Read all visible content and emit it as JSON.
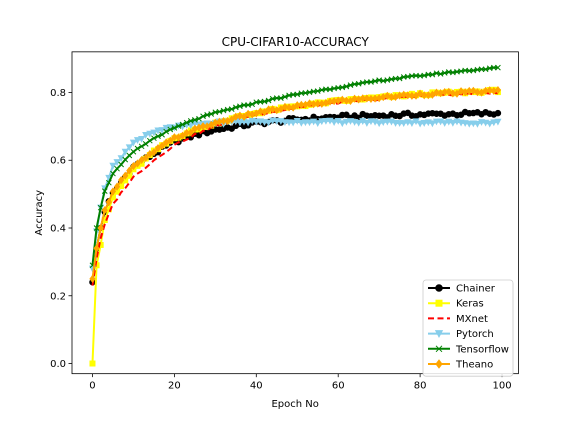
{
  "chart_data": {
    "type": "line",
    "title": "CPU-CIFAR10-ACCURACY",
    "xlabel": "Epoch No",
    "ylabel": "Accuracy",
    "xlim": [
      -5,
      104
    ],
    "ylim": [
      -0.03,
      0.92
    ],
    "xticks": [
      0,
      20,
      40,
      60,
      80,
      100
    ],
    "yticks": [
      0.0,
      0.2,
      0.4,
      0.6,
      0.8
    ],
    "ytick_labels": [
      "0.0",
      "0.2",
      "0.4",
      "0.6",
      "0.8"
    ],
    "grid": false,
    "legend_position": "lower-right",
    "epochs": 100,
    "series": [
      {
        "name": "Chainer",
        "color": "#000000",
        "dash": "solid",
        "marker": "circle",
        "anchors": [
          [
            0,
            0.24
          ],
          [
            1,
            0.34
          ],
          [
            2,
            0.4
          ],
          [
            3,
            0.45
          ],
          [
            5,
            0.5
          ],
          [
            8,
            0.55
          ],
          [
            10,
            0.58
          ],
          [
            15,
            0.62
          ],
          [
            20,
            0.655
          ],
          [
            25,
            0.675
          ],
          [
            30,
            0.69
          ],
          [
            35,
            0.7
          ],
          [
            40,
            0.71
          ],
          [
            50,
            0.72
          ],
          [
            60,
            0.728
          ],
          [
            70,
            0.732
          ],
          [
            80,
            0.735
          ],
          [
            90,
            0.737
          ],
          [
            99,
            0.738
          ]
        ]
      },
      {
        "name": "Keras",
        "color": "#ffff00",
        "dash": "solid",
        "marker": "square",
        "anchors": [
          [
            0,
            0.0
          ],
          [
            1,
            0.29
          ],
          [
            2,
            0.35
          ],
          [
            3,
            0.42
          ],
          [
            5,
            0.49
          ],
          [
            8,
            0.54
          ],
          [
            10,
            0.57
          ],
          [
            15,
            0.625
          ],
          [
            20,
            0.665
          ],
          [
            25,
            0.69
          ],
          [
            30,
            0.71
          ],
          [
            35,
            0.725
          ],
          [
            40,
            0.74
          ],
          [
            50,
            0.76
          ],
          [
            60,
            0.775
          ],
          [
            70,
            0.785
          ],
          [
            80,
            0.795
          ],
          [
            90,
            0.8
          ],
          [
            99,
            0.805
          ]
        ]
      },
      {
        "name": "MXnet",
        "color": "#ff0000",
        "dash": "dashed",
        "marker": "none",
        "anchors": [
          [
            0,
            0.23
          ],
          [
            1,
            0.31
          ],
          [
            2,
            0.37
          ],
          [
            3,
            0.41
          ],
          [
            5,
            0.47
          ],
          [
            8,
            0.52
          ],
          [
            10,
            0.55
          ],
          [
            15,
            0.6
          ],
          [
            20,
            0.645
          ],
          [
            25,
            0.675
          ],
          [
            30,
            0.7
          ],
          [
            35,
            0.72
          ],
          [
            40,
            0.735
          ],
          [
            50,
            0.755
          ],
          [
            60,
            0.77
          ],
          [
            70,
            0.78
          ],
          [
            80,
            0.79
          ],
          [
            90,
            0.795
          ],
          [
            99,
            0.8
          ]
        ]
      },
      {
        "name": "Pytorch",
        "color": "#87ceeb",
        "dash": "solid",
        "marker": "triangle",
        "anchors": [
          [
            0,
            0.28
          ],
          [
            1,
            0.39
          ],
          [
            2,
            0.46
          ],
          [
            3,
            0.52
          ],
          [
            5,
            0.58
          ],
          [
            8,
            0.625
          ],
          [
            10,
            0.65
          ],
          [
            13,
            0.675
          ],
          [
            16,
            0.688
          ],
          [
            20,
            0.697
          ],
          [
            25,
            0.705
          ],
          [
            30,
            0.71
          ],
          [
            35,
            0.713
          ],
          [
            40,
            0.714
          ],
          [
            50,
            0.714
          ],
          [
            60,
            0.713
          ],
          [
            70,
            0.712
          ],
          [
            80,
            0.712
          ],
          [
            90,
            0.711
          ],
          [
            99,
            0.711
          ]
        ]
      },
      {
        "name": "Tensorflow",
        "color": "#008000",
        "dash": "solid",
        "marker": "x",
        "anchors": [
          [
            0,
            0.29
          ],
          [
            1,
            0.4
          ],
          [
            2,
            0.46
          ],
          [
            3,
            0.51
          ],
          [
            5,
            0.56
          ],
          [
            8,
            0.6
          ],
          [
            10,
            0.625
          ],
          [
            15,
            0.665
          ],
          [
            20,
            0.695
          ],
          [
            25,
            0.72
          ],
          [
            30,
            0.74
          ],
          [
            35,
            0.755
          ],
          [
            40,
            0.77
          ],
          [
            50,
            0.795
          ],
          [
            60,
            0.815
          ],
          [
            70,
            0.835
          ],
          [
            80,
            0.85
          ],
          [
            90,
            0.863
          ],
          [
            99,
            0.873
          ]
        ]
      },
      {
        "name": "Theano",
        "color": "#ffa500",
        "dash": "solid",
        "marker": "diamond",
        "anchors": [
          [
            0,
            0.25
          ],
          [
            1,
            0.34
          ],
          [
            2,
            0.4
          ],
          [
            3,
            0.45
          ],
          [
            5,
            0.51
          ],
          [
            8,
            0.555
          ],
          [
            10,
            0.58
          ],
          [
            15,
            0.625
          ],
          [
            20,
            0.665
          ],
          [
            25,
            0.69
          ],
          [
            30,
            0.71
          ],
          [
            35,
            0.725
          ],
          [
            40,
            0.74
          ],
          [
            50,
            0.76
          ],
          [
            60,
            0.775
          ],
          [
            70,
            0.785
          ],
          [
            80,
            0.795
          ],
          [
            90,
            0.8
          ],
          [
            99,
            0.805
          ]
        ]
      }
    ]
  }
}
